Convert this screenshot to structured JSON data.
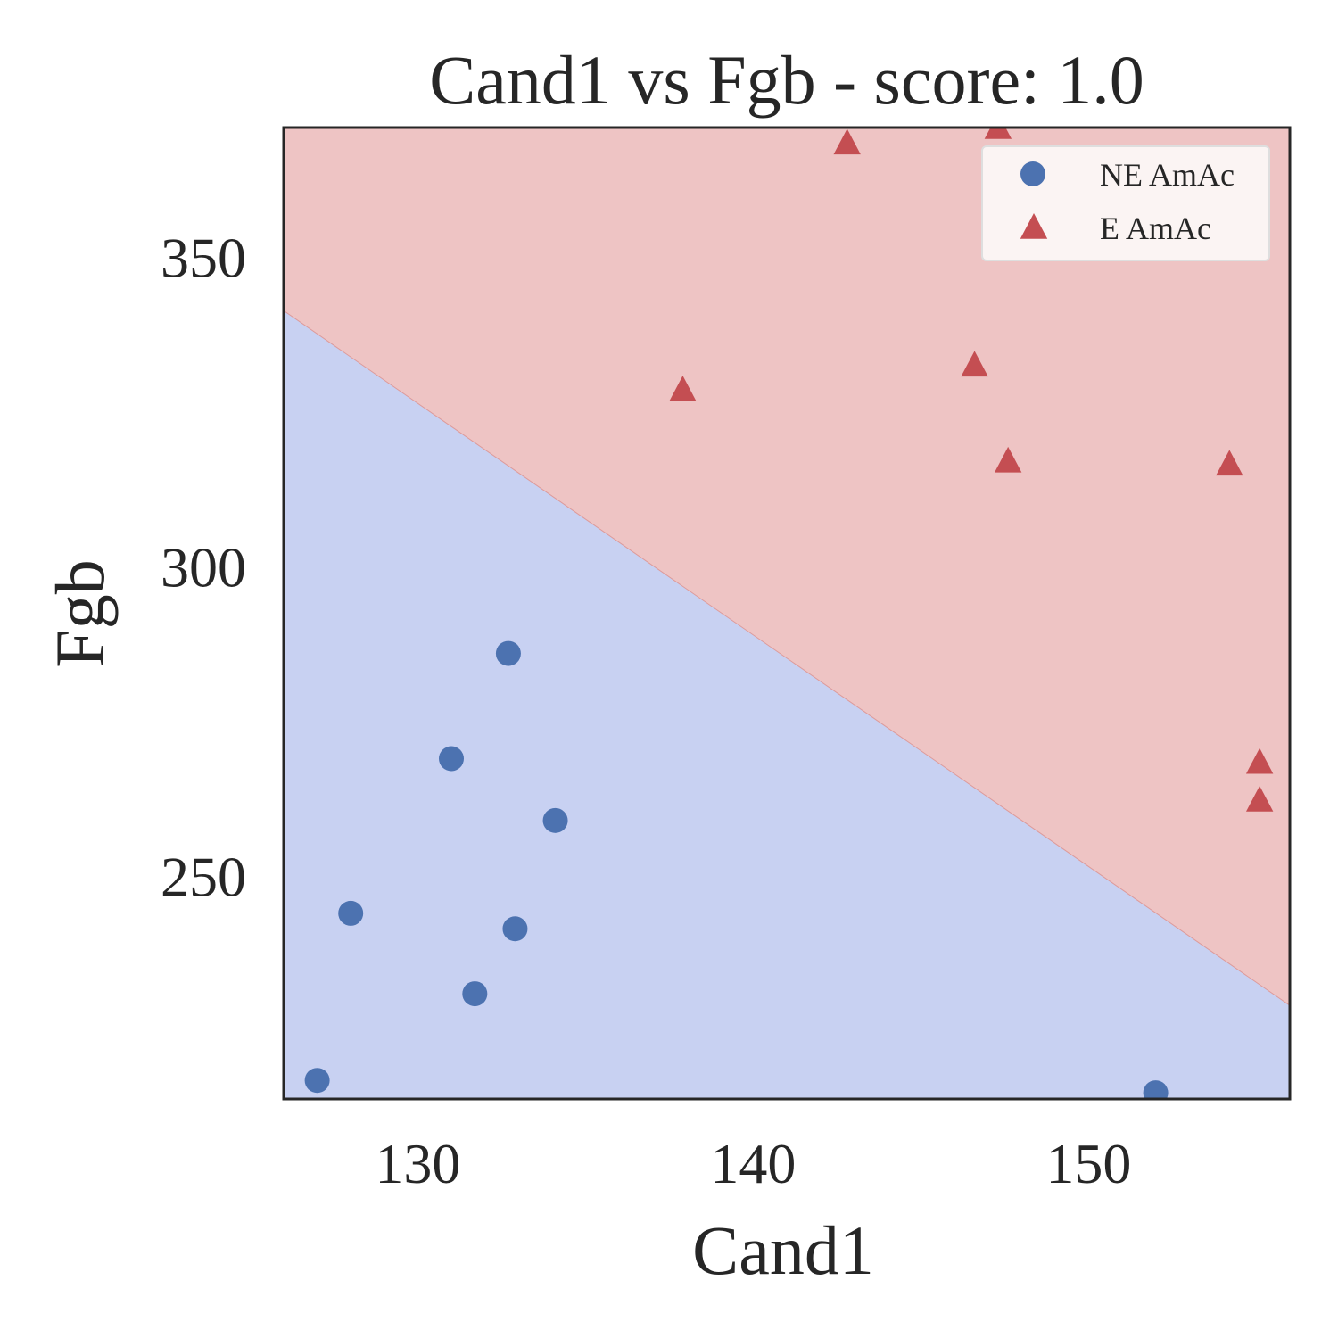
{
  "chart_data": {
    "type": "scatter",
    "title": "Cand1 vs Fgb - score: 1.0",
    "xlabel": "Cand1",
    "ylabel": "Fgb",
    "xlim": [
      126,
      156
    ],
    "ylim": [
      214,
      371
    ],
    "xticks": [
      130,
      140,
      150
    ],
    "yticks": [
      250,
      300,
      350
    ],
    "grid": false,
    "legend_position": "top-right",
    "regions": {
      "boundary": [
        [
          126,
          341.4
        ],
        [
          156,
          229.1
        ]
      ],
      "above_color": "#eec4c4",
      "below_color": "#c8d1f2"
    },
    "series": [
      {
        "name": "NE AmAc",
        "marker": "circle",
        "color": "#4c72b0",
        "points": [
          [
            127.0,
            217.0
          ],
          [
            128.0,
            244.0
          ],
          [
            131.0,
            269.0
          ],
          [
            131.7,
            231.0
          ],
          [
            132.7,
            286.0
          ],
          [
            132.9,
            241.5
          ],
          [
            134.1,
            259.0
          ],
          [
            152.0,
            215.0
          ]
        ]
      },
      {
        "name": "E AmAc",
        "marker": "triangle",
        "color": "#c44e52",
        "points": [
          [
            137.9,
            328.6
          ],
          [
            142.8,
            368.5
          ],
          [
            146.6,
            332.6
          ],
          [
            147.3,
            371.0
          ],
          [
            147.6,
            317.1
          ],
          [
            154.2,
            316.6
          ],
          [
            155.1,
            268.4
          ],
          [
            155.1,
            262.3
          ]
        ]
      }
    ]
  }
}
